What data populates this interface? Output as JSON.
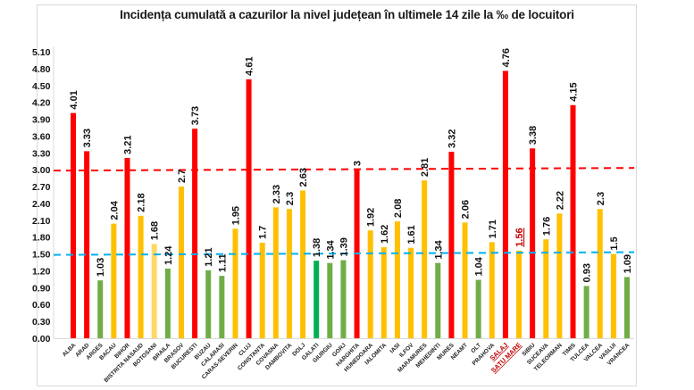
{
  "chart_data": {
    "type": "bar",
    "title": "Incidența cumulată a cazurilor la nivel județean în ultimele 14 zile la ‰ de locuitori",
    "xlabel": "",
    "ylabel": "",
    "ylim": [
      0,
      5.1
    ],
    "y_ticks": [
      "0.00",
      "0.30",
      "0.60",
      "0.90",
      "1.20",
      "1.50",
      "1.80",
      "2.10",
      "2.40",
      "2.70",
      "3.00",
      "3.30",
      "3.60",
      "3.90",
      "4.20",
      "4.50",
      "4.80",
      "5.10"
    ],
    "grid": false,
    "legend": "none",
    "reference_lines": [
      {
        "name": "threshold-3",
        "value": 3.0,
        "color": "#ff0000",
        "style": "dashed"
      },
      {
        "name": "threshold-1.5",
        "value": 1.5,
        "color": "#00b0f0",
        "style": "dashed"
      }
    ],
    "categories": [
      "ALBA",
      "ARAD",
      "ARGES",
      "BACAU",
      "BIHOR",
      "BISTRITA NASAUD",
      "BOTOSANI",
      "BRAILA",
      "BRASOV",
      "BUCURESTI",
      "BUZAU",
      "CALARASI",
      "CARAS-SEVERIN",
      "CLUJ",
      "CONSTANTA",
      "COVASNA",
      "DAMBOVITA",
      "DOLJ",
      "GALATI",
      "GIURGIU",
      "GORJ",
      "HARGHITA",
      "HUNEDOARA",
      "IALOMITA",
      "IASI",
      "ILFOV",
      "MARAMURES",
      "MEHEDINTI",
      "MURES",
      "NEAMT",
      "OLT",
      "PRAHOVA",
      "SALAJ",
      "SATU MARE",
      "SIBIU",
      "SUCEAVA",
      "TELEORMAN",
      "TIMIS",
      "TULCEA",
      "VALCEA",
      "VASLUI",
      "VRANCEA"
    ],
    "values": [
      4.01,
      3.33,
      1.03,
      2.04,
      3.21,
      2.18,
      1.68,
      1.24,
      2.7,
      3.73,
      1.21,
      1.11,
      1.95,
      4.61,
      1.7,
      2.33,
      2.3,
      2.63,
      1.38,
      1.34,
      1.39,
      3,
      1.92,
      1.62,
      2.08,
      1.61,
      2.81,
      1.34,
      3.32,
      2.06,
      1.04,
      1.71,
      4.76,
      1.56,
      3.38,
      1.76,
      2.22,
      4.15,
      0.93,
      2.3,
      1.5,
      1.09
    ],
    "value_labels": [
      "4.01",
      "3.33",
      "1.03",
      "2.04",
      "3.21",
      "2.18",
      "1.68",
      "1.24",
      "2.7",
      "3.73",
      "1.21",
      "1.11",
      "1.95",
      "4.61",
      "1.7",
      "2.33",
      "2.3",
      "2.63",
      "1.38",
      "1.34",
      "1.39",
      "3",
      "1.92",
      "1.62",
      "2.08",
      "1.61",
      "2.81",
      "1.34",
      "3.32",
      "2.06",
      "1.04",
      "1.71",
      "4.76",
      "1.56",
      "3.38",
      "1.76",
      "2.22",
      "4.15",
      "0.93",
      "2.3",
      "1.5",
      "1.09"
    ],
    "bar_colors": [
      "#ff0000",
      "#ff0000",
      "#70ad47",
      "#ffc000",
      "#ff0000",
      "#ffc000",
      "#ffd966",
      "#70ad47",
      "#ffc000",
      "#ff0000",
      "#70ad47",
      "#70ad47",
      "#ffc000",
      "#ff0000",
      "#ffc000",
      "#ffc000",
      "#ffc000",
      "#ffc000",
      "#00b050",
      "#70ad47",
      "#70ad47",
      "#ff0000",
      "#ffc000",
      "#ffc000",
      "#ffc000",
      "#ffc000",
      "#ffc000",
      "#70ad47",
      "#ff0000",
      "#ffc000",
      "#70ad47",
      "#ffc000",
      "#ff0000",
      "#ffc000",
      "#ff0000",
      "#ffc000",
      "#ffc000",
      "#ff0000",
      "#70ad47",
      "#ffc000",
      "#ffc000",
      "#70ad47"
    ],
    "highlighted_categories": [
      "SALAJ",
      "SATU MARE"
    ],
    "highlighted_value_labels": [
      "1.56"
    ],
    "highlight_color": "#c00000"
  }
}
